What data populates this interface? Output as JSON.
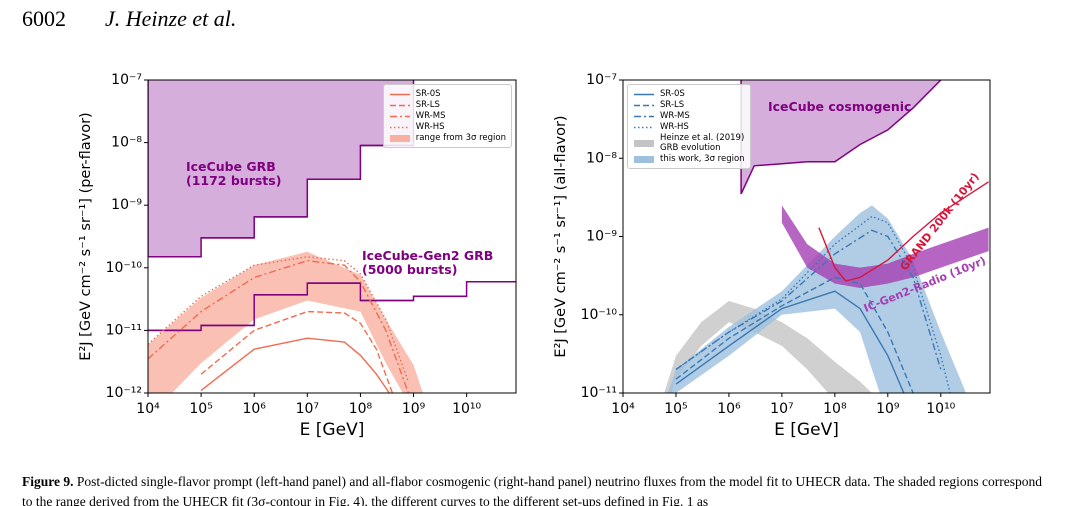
{
  "header": {
    "page": "6002",
    "authors": "J. Heinze et al."
  },
  "caption": {
    "label": "Figure 9.",
    "text": "Post-dicted single-flavor prompt (left-hand panel) and all-flabor cosmogenic (right-hand panel) neutrino fluxes from the model fit to UHECR data. The shaded regions correspond to the range derived from the UHECR fit (3σ-contour in Fig. 4), the different curves to the different set-ups defined in Fig. 1 as"
  },
  "chart_data": [
    {
      "type": "line",
      "xscale": "log",
      "yscale": "log",
      "xlabel": "E [GeV]",
      "ylabel": "E²J [GeV cm⁻² s⁻¹ sr⁻¹] (per-flavor)",
      "xlim": [
        10000.0,
        85000000000.0
      ],
      "ylim": [
        1e-12,
        1e-07
      ],
      "xticks": [
        {
          "value": 10000.0,
          "label": "10⁴"
        },
        {
          "value": 100000.0,
          "label": "10⁵"
        },
        {
          "value": 1000000.0,
          "label": "10⁶"
        },
        {
          "value": 10000000.0,
          "label": "10⁷"
        },
        {
          "value": 100000000.0,
          "label": "10⁸"
        },
        {
          "value": 1000000000.0,
          "label": "10⁹"
        },
        {
          "value": 10000000000.0,
          "label": "10¹⁰"
        }
      ],
      "yticks": [
        {
          "value": 1e-12,
          "label": "10⁻¹²"
        },
        {
          "value": 1e-11,
          "label": "10⁻¹¹"
        },
        {
          "value": 1e-10,
          "label": "10⁻¹⁰"
        },
        {
          "value": 1e-09,
          "label": "10⁻⁹"
        },
        {
          "value": 1e-08,
          "label": "10⁻⁸"
        },
        {
          "value": 1e-07,
          "label": "10⁻⁷"
        }
      ],
      "grid": false,
      "legend": "upper right",
      "series": [
        {
          "name": "SR-0S",
          "type": "line",
          "dash": "solid",
          "color": "#f26b50",
          "x": [
            100000.0,
            1000000.0,
            10000000.0,
            50000000.0,
            100000000.0,
            200000000.0,
            350000000.0
          ],
          "values": [
            1.1e-12,
            5e-12,
            7.5e-12,
            6.5e-12,
            4e-12,
            2e-12,
            1e-12
          ]
        },
        {
          "name": "SR-LS",
          "type": "line",
          "dash": "dashed",
          "color": "#f26b50",
          "x": [
            100000.0,
            1000000.0,
            10000000.0,
            50000000.0,
            100000000.0,
            200000000.0,
            400000000.0
          ],
          "values": [
            2e-12,
            1e-11,
            2e-11,
            1.9e-11,
            1.3e-11,
            5e-12,
            1e-12
          ]
        },
        {
          "name": "WR-MS",
          "type": "line",
          "dash": "dashdot",
          "color": "#f26b50",
          "x": [
            10000.0,
            100000.0,
            1000000.0,
            10000000.0,
            50000000.0,
            100000000.0,
            300000000.0,
            800000000.0
          ],
          "values": [
            3.5e-12,
            2e-11,
            7e-11,
            1.3e-10,
            1.1e-10,
            6e-11,
            1e-11,
            1e-12
          ]
        },
        {
          "name": "WR-HS",
          "type": "line",
          "dash": "dotted",
          "color": "#f26b50",
          "x": [
            10000.0,
            100000.0,
            1000000.0,
            10000000.0,
            50000000.0,
            100000000.0,
            300000000.0,
            800000000.0
          ],
          "values": [
            6e-12,
            3.5e-11,
            1.1e-10,
            1.5e-10,
            1.3e-10,
            8e-11,
            1.5e-11,
            1.5e-12
          ]
        },
        {
          "name": "range from 3σ region",
          "type": "band",
          "color": "#f9b0a0",
          "x": [
            10000.0,
            100000.0,
            1000000.0,
            10000000.0,
            100000000.0,
            300000000.0,
            1000000000.0,
            1500000000.0
          ],
          "values": [
            5.9e-12,
            3.3e-11,
            1.1e-10,
            1.8e-10,
            7.7e-11,
            1.5e-11,
            2.8e-12,
            1e-12
          ],
          "lower": [
            4e-13,
            3e-12,
            1.5e-11,
            3e-11,
            2e-11,
            3e-12,
            5e-13,
            3e-13
          ]
        },
        {
          "type": "step_region",
          "color": "#800080",
          "fill": "#d5aedb",
          "label": "IceCube GRB\n(1172 bursts)",
          "bins": [
            10000.0,
            100000.0,
            1000000.0,
            10000000.0,
            100000000.0,
            1000000000.0
          ],
          "values": [
            1.5e-10,
            3e-10,
            6.5e-10,
            2.6e-09,
            9e-09
          ]
        },
        {
          "type": "step",
          "color": "#800080",
          "label": "IceCube-Gen2 GRB\n(5000 bursts)",
          "bins": [
            10000.0,
            100000.0,
            1000000.0,
            10000000.0,
            100000000.0,
            1000000000.0,
            10000000000.0,
            100000000000.0
          ],
          "values": [
            1e-11,
            1.2e-11,
            3.7e-11,
            5.7e-11,
            3e-11,
            3.5e-11,
            6e-11
          ]
        }
      ]
    },
    {
      "type": "line",
      "xscale": "log",
      "yscale": "log",
      "xlabel": "E [GeV]",
      "ylabel": "E²J [GeV cm⁻² s⁻¹ sr⁻¹] (all-flavor)",
      "xlim": [
        10000.0,
        85000000000.0
      ],
      "ylim": [
        1e-11,
        1e-07
      ],
      "xticks": [
        {
          "value": 10000.0,
          "label": "10⁴"
        },
        {
          "value": 100000.0,
          "label": "10⁵"
        },
        {
          "value": 1000000.0,
          "label": "10⁶"
        },
        {
          "value": 10000000.0,
          "label": "10⁷"
        },
        {
          "value": 100000000.0,
          "label": "10⁸"
        },
        {
          "value": 1000000000.0,
          "label": "10⁹"
        },
        {
          "value": 10000000000.0,
          "label": "10¹⁰"
        }
      ],
      "yticks": [
        {
          "value": 1e-11,
          "label": "10⁻¹¹"
        },
        {
          "value": 1e-10,
          "label": "10⁻¹⁰"
        },
        {
          "value": 1e-09,
          "label": "10⁻⁹"
        },
        {
          "value": 1e-08,
          "label": "10⁻⁸"
        },
        {
          "value": 1e-07,
          "label": "10⁻⁷"
        }
      ],
      "grid": false,
      "legend": "upper left",
      "series": [
        {
          "name": "SR-0S",
          "type": "line",
          "dash": "solid",
          "color": "#3a78b5",
          "x": [
            100000.0,
            1000000.0,
            10000000.0,
            100000000.0,
            300000000.0,
            1000000000.0,
            2000000000.0
          ],
          "values": [
            1.3e-11,
            4e-11,
            1.2e-10,
            2e-10,
            1.2e-10,
            3e-11,
            1e-11
          ]
        },
        {
          "name": "SR-LS",
          "type": "line",
          "dash": "dashed",
          "color": "#3a78b5",
          "x": [
            100000.0,
            1000000.0,
            10000000.0,
            100000000.0,
            300000000.0,
            1000000000.0,
            3000000000.0
          ],
          "values": [
            1.5e-11,
            5e-11,
            1.3e-10,
            3e-10,
            2.5e-10,
            6e-11,
            1e-11
          ]
        },
        {
          "name": "WR-MS",
          "type": "line",
          "dash": "dashdot",
          "color": "#3a78b5",
          "x": [
            100000.0,
            1000000.0,
            10000000.0,
            100000000.0,
            500000000.0,
            1000000000.0,
            3000000000.0,
            10000000000.0
          ],
          "values": [
            2e-11,
            6e-11,
            1.5e-10,
            6e-10,
            1.2e-09,
            1e-09,
            3e-10,
            2e-11
          ]
        },
        {
          "name": "WR-HS",
          "type": "line",
          "dash": "dotted",
          "color": "#3a78b5",
          "x": [
            100000.0,
            1000000.0,
            10000000.0,
            100000000.0,
            500000000.0,
            1000000000.0,
            3000000000.0,
            10000000000.0,
            15000000000.0
          ],
          "values": [
            2e-11,
            6e-11,
            1.6e-10,
            8e-10,
            1.8e-09,
            1.5e-09,
            4e-10,
            3e-11,
            1e-11
          ]
        },
        {
          "name": "Heinze et al. (2019)\nGRB evolution",
          "type": "band",
          "color": "#c4c4c4",
          "x": [
            60000.0,
            100000.0,
            300000.0,
            1000000.0,
            3000000.0,
            10000000.0,
            30000000.0,
            100000000.0,
            300000000.0,
            500000000.0
          ],
          "values": [
            1e-11,
            3e-11,
            8e-11,
            1.5e-10,
            1.2e-10,
            8e-11,
            5e-11,
            2.5e-11,
            1.4e-11,
            1e-11
          ],
          "lower": [
            5e-12,
            1.5e-11,
            4e-11,
            8e-11,
            6e-11,
            4e-11,
            2e-11,
            8e-12,
            5e-12,
            4e-12
          ]
        },
        {
          "name": "this work, 3σ region",
          "type": "band",
          "color": "#9dc0df",
          "x": [
            70000.0,
            100000.0,
            1000000.0,
            10000000.0,
            100000000.0,
            300000000.0,
            500000000.0,
            1000000000.0,
            3000000000.0,
            10000000000.0,
            30000000000.0
          ],
          "values": [
            1e-11,
            2e-11,
            7e-11,
            2e-10,
            1e-09,
            2e-09,
            2.5e-09,
            1.7e-09,
            5e-10,
            6e-11,
            1e-11
          ],
          "lower": [
            5e-12,
            1e-11,
            3e-11,
            1e-10,
            1.2e-10,
            6e-11,
            2e-11,
            5e-12,
            3e-12,
            2e-12,
            1e-12
          ]
        },
        {
          "type": "region_above",
          "color": "#800080",
          "fill": "#d5aedb",
          "label": "IceCube cosmogenic",
          "x": [
            1700000.0,
            3000000.0,
            10000000.0,
            30000000.0,
            100000000.0,
            300000000.0,
            1000000000.0,
            3000000000.0,
            10000000000.0
          ],
          "values": [
            3.5e-09,
            8e-09,
            8.5e-09,
            9e-09,
            9e-09,
            1.5e-08,
            2.3e-08,
            4.4e-08,
            1e-07
          ]
        },
        {
          "type": "band",
          "color": "#a43fb3",
          "label": "IC-Gen2-Radio (10yr)",
          "x": [
            10000000.0,
            30000000.0,
            100000000.0,
            300000000.0,
            1000000000.0,
            3000000000.0,
            10000000000.0,
            80000000000.0
          ],
          "values": [
            2.5e-09,
            8e-10,
            4.5e-10,
            4e-10,
            4.5e-10,
            6e-10,
            8e-10,
            1.3e-09
          ],
          "lower": [
            1.5e-09,
            4e-10,
            2.5e-10,
            2.2e-10,
            2.5e-10,
            3e-10,
            4e-10,
            6.5e-10
          ]
        },
        {
          "type": "line",
          "dash": "solid",
          "color": "#d7163a",
          "label": "GRAND 200k (10yr)",
          "x": [
            50000000.0,
            100000000.0,
            160000000.0,
            300000000.0,
            1000000000.0,
            3000000000.0,
            10000000000.0,
            80000000000.0
          ],
          "values": [
            1.3e-09,
            4e-10,
            2.7e-10,
            3e-10,
            5e-10,
            1e-09,
            2e-09,
            5e-09
          ]
        }
      ]
    }
  ]
}
